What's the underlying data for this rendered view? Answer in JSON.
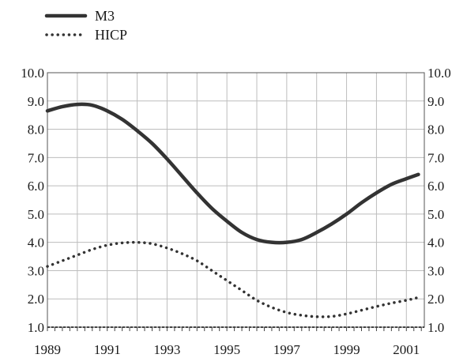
{
  "chart_data": {
    "type": "line",
    "title": "",
    "xlabel": "",
    "ylabel": "",
    "xlim": [
      1989,
      2001.6
    ],
    "ylim": [
      1.0,
      10.0
    ],
    "x_ticks": [
      "1989",
      "1991",
      "1993",
      "1995",
      "1997",
      "1999",
      "2001"
    ],
    "y_ticks": [
      "1.0",
      "2.0",
      "3.0",
      "4.0",
      "5.0",
      "6.0",
      "7.0",
      "8.0",
      "9.0",
      "10.0"
    ],
    "grid": true,
    "legend_position": "top-left",
    "series": [
      {
        "name": "M3",
        "style": "solid",
        "color": "#333333",
        "points": [
          [
            1989.0,
            8.65
          ],
          [
            1989.5,
            8.8
          ],
          [
            1990.0,
            8.88
          ],
          [
            1990.5,
            8.85
          ],
          [
            1991.0,
            8.65
          ],
          [
            1991.5,
            8.35
          ],
          [
            1992.0,
            7.95
          ],
          [
            1992.5,
            7.5
          ],
          [
            1993.0,
            6.95
          ],
          [
            1993.5,
            6.35
          ],
          [
            1994.0,
            5.75
          ],
          [
            1994.5,
            5.2
          ],
          [
            1995.0,
            4.75
          ],
          [
            1995.5,
            4.35
          ],
          [
            1996.0,
            4.1
          ],
          [
            1996.5,
            4.0
          ],
          [
            1997.0,
            4.0
          ],
          [
            1997.5,
            4.1
          ],
          [
            1998.0,
            4.35
          ],
          [
            1998.5,
            4.65
          ],
          [
            1999.0,
            5.0
          ],
          [
            1999.5,
            5.4
          ],
          [
            2000.0,
            5.75
          ],
          [
            2000.5,
            6.05
          ],
          [
            2001.0,
            6.25
          ],
          [
            2001.4,
            6.4
          ]
        ]
      },
      {
        "name": "HICP",
        "style": "dotted",
        "color": "#333333",
        "points": [
          [
            1989.0,
            3.15
          ],
          [
            1989.5,
            3.35
          ],
          [
            1990.0,
            3.55
          ],
          [
            1990.5,
            3.75
          ],
          [
            1991.0,
            3.9
          ],
          [
            1991.5,
            3.98
          ],
          [
            1992.0,
            4.0
          ],
          [
            1992.5,
            3.95
          ],
          [
            1993.0,
            3.8
          ],
          [
            1993.5,
            3.6
          ],
          [
            1994.0,
            3.35
          ],
          [
            1994.5,
            3.0
          ],
          [
            1995.0,
            2.65
          ],
          [
            1995.5,
            2.3
          ],
          [
            1996.0,
            1.95
          ],
          [
            1996.5,
            1.7
          ],
          [
            1997.0,
            1.52
          ],
          [
            1997.5,
            1.42
          ],
          [
            1998.0,
            1.37
          ],
          [
            1998.5,
            1.38
          ],
          [
            1999.0,
            1.47
          ],
          [
            1999.5,
            1.6
          ],
          [
            2000.0,
            1.73
          ],
          [
            2000.5,
            1.85
          ],
          [
            2001.0,
            1.95
          ],
          [
            2001.4,
            2.05
          ]
        ]
      }
    ]
  }
}
